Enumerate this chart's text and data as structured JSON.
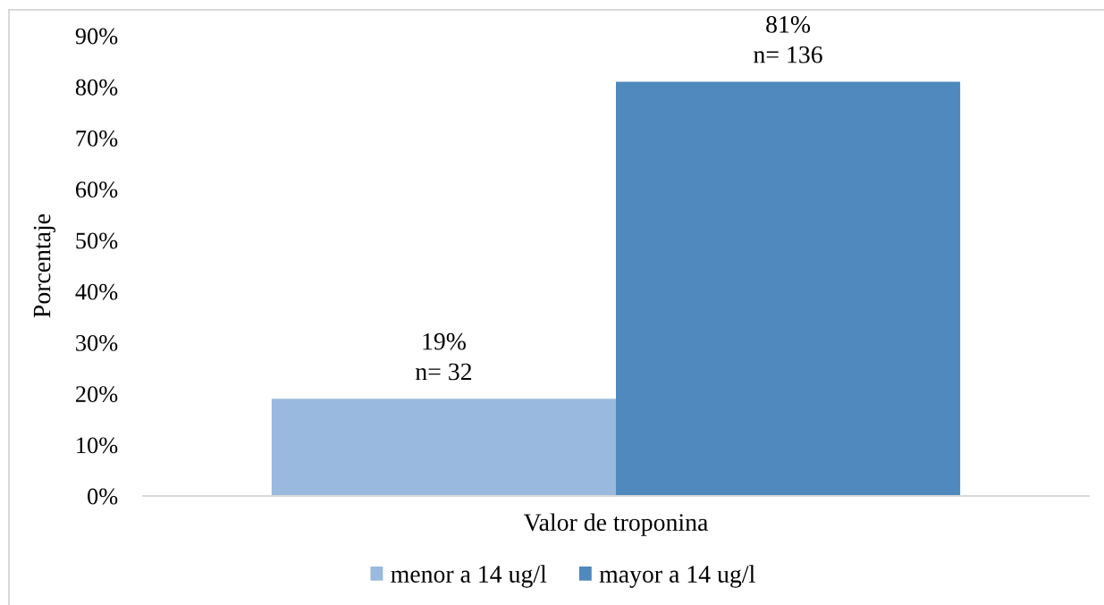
{
  "chart_data": {
    "type": "bar",
    "categories": [
      "Valor de troponina"
    ],
    "ylabel": "Porcentaje",
    "series": [
      {
        "name": "menor a 14 ug/l",
        "color": "#99b9de",
        "values": [
          19
        ],
        "value_labels": [
          "19%\nn= 32"
        ]
      },
      {
        "name": "mayor a 14 ug/l",
        "color": "#4f89bd",
        "values": [
          81
        ],
        "value_labels": [
          "81%\nn= 136"
        ]
      }
    ],
    "ylim": [
      0,
      90
    ],
    "yticks": [
      {
        "value": 0,
        "label": "0%"
      },
      {
        "value": 10,
        "label": "10%"
      },
      {
        "value": 20,
        "label": "20%"
      },
      {
        "value": 30,
        "label": "30%"
      },
      {
        "value": 40,
        "label": "40%"
      },
      {
        "value": 50,
        "label": "50%"
      },
      {
        "value": 60,
        "label": "60%"
      },
      {
        "value": 70,
        "label": "70%"
      },
      {
        "value": 80,
        "label": "80%"
      },
      {
        "value": 90,
        "label": "90%"
      }
    ],
    "grid": false,
    "legend": "bottom"
  }
}
